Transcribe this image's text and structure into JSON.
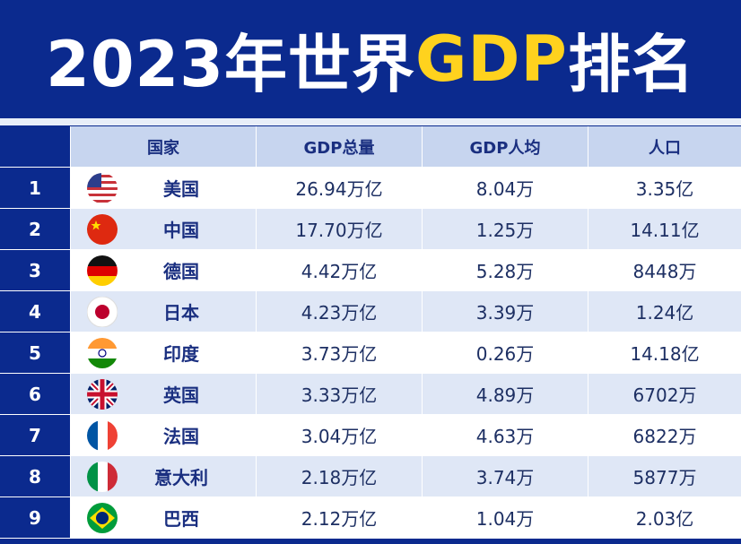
{
  "title": {
    "before": "2023年世界",
    "highlight": "GDP",
    "after": "排名"
  },
  "table": {
    "headers": [
      "国家",
      "GDP总量",
      "GDP人均",
      "人口"
    ],
    "rows": [
      [
        "1",
        "美国",
        "26.94万亿",
        "8.04万",
        "3.35亿"
      ],
      [
        "2",
        "中国",
        "17.70万亿",
        "1.25万",
        "14.11亿"
      ],
      [
        "3",
        "德国",
        "4.42万亿",
        "5.28万",
        "8448万"
      ],
      [
        "4",
        "日本",
        "4.23万亿",
        "3.39万",
        "1.24亿"
      ],
      [
        "5",
        "印度",
        "3.73万亿",
        "0.26万",
        "14.18亿"
      ],
      [
        "6",
        "英国",
        "3.33万亿",
        "4.89万",
        "6702万"
      ],
      [
        "7",
        "法国",
        "3.04万亿",
        "4.63万",
        "6822万"
      ],
      [
        "8",
        "意大利",
        "2.18万亿",
        "3.74万",
        "5877万"
      ],
      [
        "9",
        "巴西",
        "2.12万亿",
        "1.04万",
        "2.03亿"
      ]
    ]
  }
}
